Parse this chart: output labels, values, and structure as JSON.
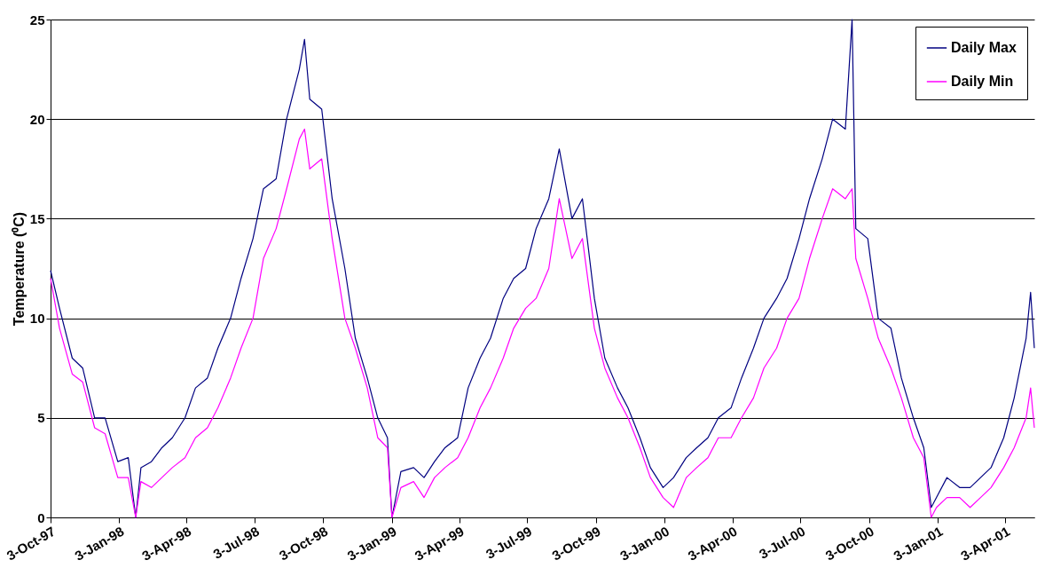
{
  "chart_data": {
    "type": "line",
    "ylabel": "Temperature (⁰C)",
    "x": [
      "1997-10-03",
      "1997-10-15",
      "1997-11-01",
      "1997-11-15",
      "1997-12-01",
      "1997-12-15",
      "1998-01-01",
      "1998-01-15",
      "1998-01-25",
      "1998-02-01",
      "1998-02-15",
      "1998-03-01",
      "1998-03-15",
      "1998-04-01",
      "1998-04-15",
      "1998-05-01",
      "1998-05-15",
      "1998-06-01",
      "1998-06-15",
      "1998-07-01",
      "1998-07-15",
      "1998-08-01",
      "1998-08-15",
      "1998-09-01",
      "1998-09-08",
      "1998-09-15",
      "1998-10-01",
      "1998-10-15",
      "1998-11-01",
      "1998-11-15",
      "1998-12-01",
      "1998-12-15",
      "1998-12-28",
      "1999-01-03",
      "1999-01-15",
      "1999-02-01",
      "1999-02-15",
      "1999-03-01",
      "1999-03-15",
      "1999-04-01",
      "1999-04-15",
      "1999-05-01",
      "1999-05-15",
      "1999-06-01",
      "1999-06-15",
      "1999-07-01",
      "1999-07-15",
      "1999-08-01",
      "1999-08-15",
      "1999-09-01",
      "1999-09-15",
      "1999-10-01",
      "1999-10-15",
      "1999-11-01",
      "1999-11-15",
      "1999-12-01",
      "1999-12-15",
      "2000-01-01",
      "2000-01-15",
      "2000-02-01",
      "2000-02-15",
      "2000-03-01",
      "2000-03-15",
      "2000-04-01",
      "2000-04-15",
      "2000-05-01",
      "2000-05-15",
      "2000-06-01",
      "2000-06-15",
      "2000-07-01",
      "2000-07-15",
      "2000-08-01",
      "2000-08-15",
      "2000-09-01",
      "2000-09-10",
      "2000-09-15",
      "2000-10-01",
      "2000-10-15",
      "2000-11-01",
      "2000-11-15",
      "2000-12-01",
      "2000-12-15",
      "2000-12-25",
      "2001-01-01",
      "2001-01-15",
      "2001-02-01",
      "2001-02-15",
      "2001-03-01",
      "2001-03-15",
      "2001-04-01",
      "2001-04-15",
      "2001-05-01",
      "2001-05-07",
      "2001-05-12"
    ],
    "series": [
      {
        "name": "Daily Max",
        "color": "#000080",
        "values": [
          12.4,
          10.5,
          8.0,
          7.5,
          5.0,
          5.0,
          2.8,
          3.0,
          0.0,
          2.5,
          2.8,
          3.5,
          4.0,
          5.0,
          6.5,
          7.0,
          8.5,
          10.0,
          12.0,
          14.0,
          16.5,
          17.0,
          20.0,
          22.5,
          24.0,
          21.0,
          20.5,
          16.0,
          12.5,
          9.0,
          7.0,
          5.0,
          4.0,
          0.0,
          2.3,
          2.5,
          2.0,
          2.8,
          3.5,
          4.0,
          6.5,
          8.0,
          9.0,
          11.0,
          12.0,
          12.5,
          14.5,
          16.0,
          18.5,
          15.0,
          16.0,
          11.0,
          8.0,
          6.5,
          5.5,
          4.0,
          2.5,
          1.5,
          2.0,
          3.0,
          3.5,
          4.0,
          5.0,
          5.5,
          7.0,
          8.5,
          10.0,
          11.0,
          12.0,
          14.0,
          16.0,
          18.0,
          20.0,
          19.5,
          25.0,
          14.5,
          14.0,
          10.0,
          9.5,
          7.0,
          5.0,
          3.5,
          0.5,
          1.0,
          2.0,
          1.5,
          1.5,
          2.0,
          2.5,
          4.0,
          6.0,
          9.0,
          11.3,
          8.5
        ]
      },
      {
        "name": "Daily Min",
        "color": "#ff00ff",
        "values": [
          12.0,
          9.5,
          7.2,
          6.8,
          4.5,
          4.2,
          2.0,
          2.0,
          0.0,
          1.8,
          1.5,
          2.0,
          2.5,
          3.0,
          4.0,
          4.5,
          5.5,
          7.0,
          8.5,
          10.0,
          13.0,
          14.5,
          16.5,
          19.0,
          19.5,
          17.5,
          18.0,
          14.0,
          10.0,
          8.5,
          6.5,
          4.0,
          3.5,
          0.0,
          1.5,
          1.8,
          1.0,
          2.0,
          2.5,
          3.0,
          4.0,
          5.5,
          6.5,
          8.0,
          9.5,
          10.5,
          11.0,
          12.5,
          16.0,
          13.0,
          14.0,
          9.5,
          7.5,
          6.0,
          5.0,
          3.5,
          2.0,
          1.0,
          0.5,
          2.0,
          2.5,
          3.0,
          4.0,
          4.0,
          5.0,
          6.0,
          7.5,
          8.5,
          10.0,
          11.0,
          13.0,
          15.0,
          16.5,
          16.0,
          16.5,
          13.0,
          11.0,
          9.0,
          7.5,
          6.0,
          4.0,
          3.0,
          0.0,
          0.5,
          1.0,
          1.0,
          0.5,
          1.0,
          1.5,
          2.5,
          3.5,
          5.0,
          6.5,
          4.5
        ]
      }
    ],
    "xlim": [
      "1997-10-03",
      "2001-05-12"
    ],
    "xticks": [
      {
        "value": "1997-10-03",
        "label": "3-Oct-97"
      },
      {
        "value": "1998-01-03",
        "label": "3-Jan-98"
      },
      {
        "value": "1998-04-03",
        "label": "3-Apr-98"
      },
      {
        "value": "1998-07-03",
        "label": "3-Jul-98"
      },
      {
        "value": "1998-10-03",
        "label": "3-Oct-98"
      },
      {
        "value": "1999-01-03",
        "label": "3-Jan-99"
      },
      {
        "value": "1999-04-03",
        "label": "3-Apr-99"
      },
      {
        "value": "1999-07-03",
        "label": "3-Jul-99"
      },
      {
        "value": "1999-10-03",
        "label": "3-Oct-99"
      },
      {
        "value": "2000-01-03",
        "label": "3-Jan-00"
      },
      {
        "value": "2000-04-03",
        "label": "3-Apr-00"
      },
      {
        "value": "2000-07-03",
        "label": "3-Jul-00"
      },
      {
        "value": "2000-10-03",
        "label": "3-Oct-00"
      },
      {
        "value": "2001-01-03",
        "label": "3-Jan-01"
      },
      {
        "value": "2001-04-03",
        "label": "3-Apr-01"
      }
    ],
    "ylim": [
      0,
      25
    ],
    "yticks": [
      0,
      5,
      10,
      15,
      20,
      25
    ],
    "grid": "y",
    "legend": "top right",
    "marker": "none",
    "line_style": "solid"
  }
}
